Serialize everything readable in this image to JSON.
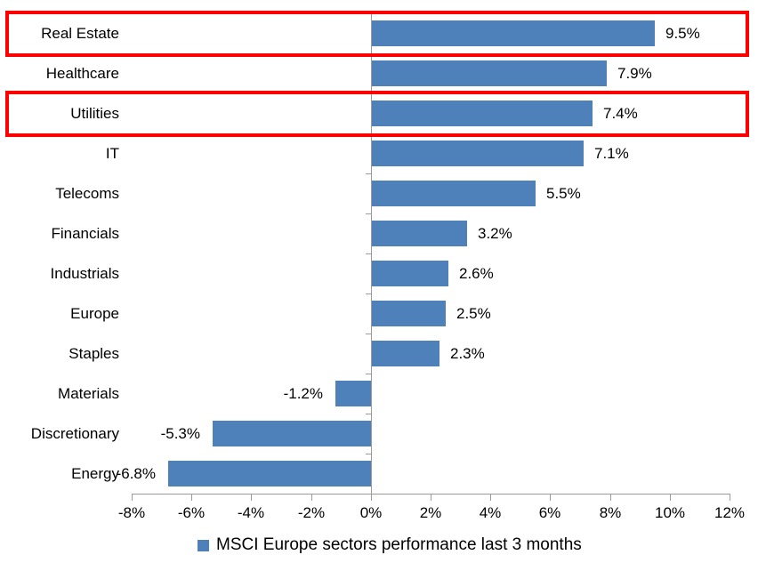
{
  "chart_data": {
    "type": "bar",
    "orientation": "horizontal",
    "title": "",
    "categories": [
      "Real Estate",
      "Healthcare",
      "Utilities",
      "IT",
      "Telecoms",
      "Financials",
      "Industrials",
      "Europe",
      "Staples",
      "Materials",
      "Discretionary",
      "Energy"
    ],
    "values": [
      9.5,
      7.9,
      7.4,
      7.1,
      5.5,
      3.2,
      2.6,
      2.5,
      2.3,
      -1.2,
      -5.3,
      -6.8
    ],
    "data_labels": [
      "9.5%",
      "7.9%",
      "7.4%",
      "7.1%",
      "5.5%",
      "3.2%",
      "2.6%",
      "2.5%",
      "2.3%",
      "-1.2%",
      "-5.3%",
      "-6.8%"
    ],
    "x_ticks": [
      "-8%",
      "-6%",
      "-4%",
      "-2%",
      "0%",
      "2%",
      "4%",
      "6%",
      "8%",
      "10%",
      "12%"
    ],
    "xlim": [
      -8,
      12
    ],
    "xlabel": "",
    "ylabel": "",
    "grid": false,
    "legend": "MSCI Europe sectors performance last 3 months",
    "legend_position": "bottom",
    "highlighted_categories": [
      "Real Estate",
      "Utilities"
    ],
    "colors": {
      "bar": "#4e81ba",
      "highlight_box": "#ff0000",
      "axis": "#9b9b9b",
      "text": "#000000",
      "background": "#ffffff"
    }
  }
}
